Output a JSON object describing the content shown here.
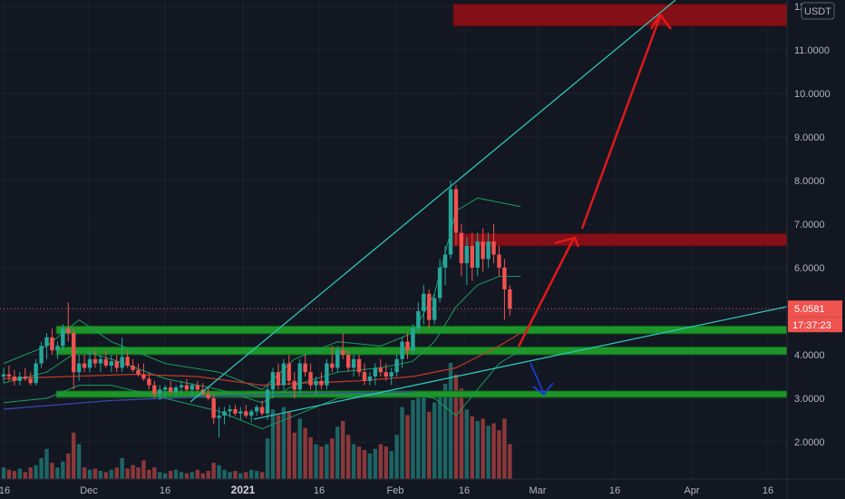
{
  "chart_data": {
    "type": "candlestick",
    "currency_label": "USDT",
    "y_ticks": [
      "12.0000",
      "11.0000",
      "10.0000",
      "9.0000",
      "8.0000",
      "7.0000",
      "6.0000",
      "5.0000",
      "4.0000",
      "3.0000",
      "2.0000"
    ],
    "x_ticks": [
      "16",
      "Dec",
      "16",
      "2021",
      "16",
      "Feb",
      "16",
      "Mar",
      "16",
      "Apr",
      "16"
    ],
    "ylim": [
      1.15,
      12.5
    ],
    "last_price": "5.0581",
    "countdown": "17:37:23",
    "colors": {
      "up": "#26a69a",
      "down": "#ef5350",
      "resistance": "#8b0f17",
      "support": "#1e9c2a",
      "trendline": "#2ec4b6",
      "arrow": "#e0191b",
      "ma_red": "#c0392b",
      "ma_blue": "#3949ab",
      "band": "#1a9a60"
    },
    "candles_ohlc": [
      [
        3.5,
        3.7,
        3.35,
        3.55
      ],
      [
        3.55,
        3.75,
        3.4,
        3.5
      ],
      [
        3.5,
        3.65,
        3.3,
        3.4
      ],
      [
        3.4,
        3.6,
        3.3,
        3.5
      ],
      [
        3.5,
        3.7,
        3.4,
        3.45
      ],
      [
        3.45,
        3.6,
        3.3,
        3.35
      ],
      [
        3.35,
        3.9,
        3.3,
        3.8
      ],
      [
        3.8,
        4.3,
        3.7,
        4.2
      ],
      [
        4.2,
        4.5,
        3.9,
        4.4
      ],
      [
        4.4,
        4.6,
        4.0,
        4.1
      ],
      [
        4.1,
        4.3,
        3.9,
        4.2
      ],
      [
        4.2,
        4.7,
        4.1,
        4.6
      ],
      [
        4.6,
        5.2,
        4.3,
        4.5
      ],
      [
        4.5,
        4.6,
        3.2,
        3.6
      ],
      [
        3.6,
        4.0,
        3.4,
        3.8
      ],
      [
        3.8,
        4.0,
        3.6,
        3.7
      ],
      [
        3.7,
        4.1,
        3.6,
        3.9
      ],
      [
        3.9,
        4.1,
        3.7,
        3.8
      ],
      [
        3.8,
        4.0,
        3.6,
        3.9
      ],
      [
        3.9,
        4.1,
        3.7,
        3.75
      ],
      [
        3.75,
        4.0,
        3.6,
        3.85
      ],
      [
        3.85,
        4.0,
        3.6,
        3.7
      ],
      [
        3.7,
        4.4,
        3.6,
        3.95
      ],
      [
        3.95,
        4.1,
        3.7,
        3.75
      ],
      [
        3.75,
        3.9,
        3.6,
        3.65
      ],
      [
        3.65,
        3.8,
        3.5,
        3.55
      ],
      [
        3.55,
        3.8,
        3.4,
        3.45
      ],
      [
        3.45,
        3.6,
        3.2,
        3.3
      ],
      [
        3.3,
        3.4,
        3.0,
        3.1
      ],
      [
        3.1,
        3.3,
        2.95,
        3.2
      ],
      [
        3.2,
        3.3,
        3.0,
        3.25
      ],
      [
        3.25,
        3.4,
        3.1,
        3.15
      ],
      [
        3.15,
        3.3,
        3.05,
        3.25
      ],
      [
        3.25,
        3.4,
        3.1,
        3.3
      ],
      [
        3.3,
        3.45,
        3.15,
        3.2
      ],
      [
        3.2,
        3.35,
        3.05,
        3.3
      ],
      [
        3.3,
        3.4,
        3.15,
        3.2
      ],
      [
        3.2,
        3.35,
        3.05,
        3.1
      ],
      [
        3.1,
        3.25,
        2.95,
        3.0
      ],
      [
        3.0,
        3.1,
        2.4,
        2.55
      ],
      [
        2.55,
        2.8,
        2.1,
        2.6
      ],
      [
        2.6,
        2.8,
        2.4,
        2.7
      ],
      [
        2.7,
        2.85,
        2.55,
        2.75
      ],
      [
        2.75,
        2.85,
        2.6,
        2.65
      ],
      [
        2.65,
        2.8,
        2.5,
        2.7
      ],
      [
        2.7,
        2.85,
        2.55,
        2.6
      ],
      [
        2.6,
        2.75,
        2.45,
        2.7
      ],
      [
        2.7,
        2.85,
        2.6,
        2.8
      ],
      [
        2.8,
        2.95,
        2.6,
        2.65
      ],
      [
        2.65,
        3.3,
        2.5,
        3.2
      ],
      [
        3.2,
        3.7,
        3.0,
        3.6
      ],
      [
        3.6,
        3.8,
        3.2,
        3.3
      ],
      [
        3.3,
        3.9,
        3.2,
        3.8
      ],
      [
        3.8,
        4.0,
        3.3,
        3.4
      ],
      [
        3.4,
        3.6,
        3.0,
        3.2
      ],
      [
        3.2,
        3.9,
        3.1,
        3.8
      ],
      [
        3.8,
        4.0,
        3.5,
        3.6
      ],
      [
        3.6,
        3.8,
        3.2,
        3.3
      ],
      [
        3.3,
        3.5,
        3.1,
        3.4
      ],
      [
        3.4,
        3.6,
        3.2,
        3.3
      ],
      [
        3.3,
        3.9,
        3.2,
        3.8
      ],
      [
        3.8,
        4.2,
        3.6,
        3.7
      ],
      [
        3.7,
        4.2,
        3.6,
        4.1
      ],
      [
        4.1,
        4.5,
        3.9,
        4.0
      ],
      [
        4.0,
        4.1,
        3.6,
        3.7
      ],
      [
        3.7,
        4.0,
        3.5,
        3.9
      ],
      [
        3.9,
        4.0,
        3.5,
        3.6
      ],
      [
        3.6,
        3.8,
        3.3,
        3.4
      ],
      [
        3.4,
        3.6,
        3.3,
        3.5
      ],
      [
        3.5,
        3.8,
        3.3,
        3.7
      ],
      [
        3.7,
        3.9,
        3.5,
        3.6
      ],
      [
        3.6,
        3.8,
        3.4,
        3.5
      ],
      [
        3.5,
        3.7,
        3.3,
        3.6
      ],
      [
        3.6,
        4.0,
        3.5,
        3.9
      ],
      [
        3.9,
        4.4,
        3.7,
        4.3
      ],
      [
        4.3,
        4.5,
        3.9,
        4.1
      ],
      [
        4.1,
        4.7,
        4.0,
        4.6
      ],
      [
        4.6,
        5.2,
        4.5,
        5.0
      ],
      [
        5.0,
        5.6,
        4.7,
        5.4
      ],
      [
        5.4,
        5.5,
        4.6,
        4.8
      ],
      [
        4.8,
        5.4,
        4.7,
        5.3
      ],
      [
        5.3,
        6.2,
        5.2,
        6.0
      ],
      [
        6.0,
        6.5,
        5.6,
        6.3
      ],
      [
        6.3,
        8.0,
        6.2,
        7.8
      ],
      [
        7.8,
        7.9,
        6.5,
        6.8
      ],
      [
        6.8,
        7.0,
        5.8,
        6.1
      ],
      [
        6.1,
        6.7,
        5.6,
        6.5
      ],
      [
        6.5,
        6.8,
        5.7,
        6.0
      ],
      [
        6.0,
        6.8,
        5.8,
        6.6
      ],
      [
        6.6,
        6.9,
        5.9,
        6.2
      ],
      [
        6.2,
        6.8,
        6.0,
        6.6
      ],
      [
        6.6,
        7.0,
        6.1,
        6.3
      ],
      [
        6.3,
        6.5,
        5.8,
        6.0
      ],
      [
        6.0,
        6.2,
        4.8,
        5.5
      ],
      [
        5.5,
        5.6,
        4.9,
        5.06
      ]
    ],
    "volume": [
      0.1,
      0.08,
      0.07,
      0.09,
      0.06,
      0.1,
      0.12,
      0.18,
      0.26,
      0.14,
      0.1,
      0.15,
      0.22,
      0.4,
      0.3,
      0.1,
      0.08,
      0.09,
      0.07,
      0.06,
      0.08,
      0.1,
      0.18,
      0.09,
      0.12,
      0.1,
      0.16,
      0.08,
      0.1,
      0.06,
      0.05,
      0.07,
      0.08,
      0.06,
      0.05,
      0.06,
      0.08,
      0.05,
      0.07,
      0.14,
      0.12,
      0.08,
      0.06,
      0.07,
      0.05,
      0.06,
      0.08,
      0.07,
      0.06,
      0.35,
      0.6,
      0.55,
      0.62,
      0.58,
      0.4,
      0.52,
      0.44,
      0.36,
      0.3,
      0.28,
      0.3,
      0.35,
      0.45,
      0.5,
      0.38,
      0.3,
      0.28,
      0.25,
      0.22,
      0.26,
      0.3,
      0.28,
      0.24,
      0.38,
      0.62,
      0.55,
      0.68,
      0.7,
      0.72,
      0.58,
      0.66,
      0.74,
      0.82,
      1.0,
      0.9,
      0.78,
      0.6,
      0.54,
      0.5,
      0.52,
      0.46,
      0.48,
      0.42,
      0.52,
      0.3
    ],
    "price_lines": {
      "ma_red": [
        [
          0,
          3.45
        ],
        [
          12,
          3.5
        ],
        [
          24,
          3.55
        ],
        [
          36,
          3.5
        ],
        [
          48,
          3.3
        ],
        [
          56,
          3.35
        ],
        [
          66,
          3.4
        ],
        [
          76,
          3.5
        ],
        [
          84,
          3.7
        ],
        [
          92,
          4.2
        ],
        [
          96,
          4.5
        ]
      ],
      "ma_blue": [
        [
          0,
          2.75
        ],
        [
          20,
          2.95
        ],
        [
          40,
          3.05
        ],
        [
          60,
          3.12
        ],
        [
          76,
          3.15
        ]
      ],
      "bb_upper": [
        [
          0,
          3.8
        ],
        [
          8,
          4.2
        ],
        [
          14,
          4.8
        ],
        [
          20,
          4.3
        ],
        [
          30,
          3.8
        ],
        [
          40,
          3.6
        ],
        [
          48,
          3.2
        ],
        [
          54,
          3.9
        ],
        [
          62,
          4.3
        ],
        [
          70,
          4.2
        ],
        [
          76,
          4.5
        ],
        [
          80,
          5.4
        ],
        [
          84,
          7.3
        ],
        [
          88,
          7.6
        ],
        [
          92,
          7.5
        ],
        [
          96,
          7.4
        ]
      ],
      "bb_middle": [
        [
          0,
          3.35
        ],
        [
          8,
          3.6
        ],
        [
          14,
          4.1
        ],
        [
          20,
          3.9
        ],
        [
          30,
          3.45
        ],
        [
          40,
          3.2
        ],
        [
          48,
          2.9
        ],
        [
          54,
          3.3
        ],
        [
          62,
          3.6
        ],
        [
          70,
          3.7
        ],
        [
          76,
          3.85
        ],
        [
          80,
          4.3
        ],
        [
          84,
          5.1
        ],
        [
          88,
          5.6
        ],
        [
          92,
          5.8
        ],
        [
          96,
          5.8
        ]
      ],
      "bb_lower": [
        [
          0,
          2.9
        ],
        [
          8,
          3.0
        ],
        [
          14,
          3.3
        ],
        [
          20,
          3.3
        ],
        [
          30,
          3.0
        ],
        [
          40,
          2.7
        ],
        [
          48,
          2.3
        ],
        [
          54,
          2.6
        ],
        [
          62,
          3.0
        ],
        [
          70,
          3.1
        ],
        [
          76,
          3.1
        ],
        [
          80,
          3.0
        ],
        [
          84,
          2.6
        ],
        [
          88,
          3.2
        ],
        [
          92,
          3.8
        ],
        [
          96,
          4.1
        ]
      ]
    },
    "zones": [
      {
        "kind": "resistance",
        "from": 11.55,
        "to": 12.05
      },
      {
        "kind": "resistance",
        "from": 6.5,
        "to": 6.78
      },
      {
        "kind": "support",
        "from": 4.48,
        "to": 4.66
      },
      {
        "kind": "support",
        "from": 4.0,
        "to": 4.18
      },
      {
        "kind": "support",
        "from": 3.02,
        "to": 3.17
      }
    ]
  }
}
